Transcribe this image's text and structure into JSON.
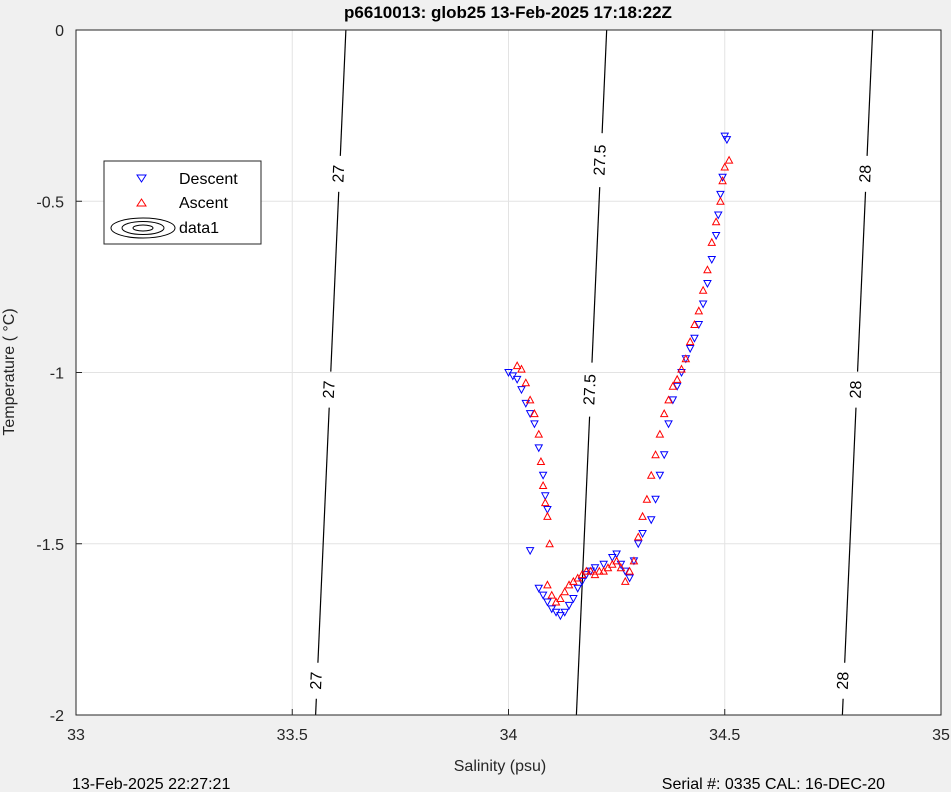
{
  "chart_data": {
    "type": "scatter",
    "title": "p6610013: glob25 13-Feb-2025 17:18:22Z",
    "xlabel": "Salinity (psu)",
    "ylabel": "Temperature (   °C)",
    "xlim": [
      33,
      35
    ],
    "ylim": [
      -2,
      0
    ],
    "x_ticks": [
      "33",
      "33.5",
      "34",
      "34.5",
      "35"
    ],
    "y_ticks": [
      "-2",
      "-1.5",
      "-1",
      "-0.5",
      "0"
    ],
    "grid": true,
    "legend_position": "top-left",
    "series": [
      {
        "name": "Descent",
        "marker": "triangle-down",
        "color": "#0000ff",
        "points": [
          [
            34.0,
            -1.0
          ],
          [
            34.01,
            -1.01
          ],
          [
            34.02,
            -1.02
          ],
          [
            34.03,
            -1.05
          ],
          [
            34.04,
            -1.09
          ],
          [
            34.05,
            -1.12
          ],
          [
            34.06,
            -1.15
          ],
          [
            34.07,
            -1.22
          ],
          [
            34.08,
            -1.3
          ],
          [
            34.085,
            -1.36
          ],
          [
            34.09,
            -1.4
          ],
          [
            34.05,
            -1.52
          ],
          [
            34.07,
            -1.63
          ],
          [
            34.08,
            -1.65
          ],
          [
            34.09,
            -1.67
          ],
          [
            34.1,
            -1.69
          ],
          [
            34.11,
            -1.7
          ],
          [
            34.12,
            -1.71
          ],
          [
            34.13,
            -1.7
          ],
          [
            34.14,
            -1.68
          ],
          [
            34.15,
            -1.66
          ],
          [
            34.16,
            -1.63
          ],
          [
            34.17,
            -1.61
          ],
          [
            34.18,
            -1.59
          ],
          [
            34.19,
            -1.58
          ],
          [
            34.2,
            -1.57
          ],
          [
            34.22,
            -1.56
          ],
          [
            34.24,
            -1.54
          ],
          [
            34.25,
            -1.53
          ],
          [
            34.26,
            -1.56
          ],
          [
            34.27,
            -1.58
          ],
          [
            34.28,
            -1.6
          ],
          [
            34.29,
            -1.55
          ],
          [
            34.3,
            -1.5
          ],
          [
            34.31,
            -1.47
          ],
          [
            34.33,
            -1.43
          ],
          [
            34.34,
            -1.37
          ],
          [
            34.35,
            -1.3
          ],
          [
            34.36,
            -1.24
          ],
          [
            34.37,
            -1.15
          ],
          [
            34.38,
            -1.08
          ],
          [
            34.39,
            -1.04
          ],
          [
            34.4,
            -1.0
          ],
          [
            34.41,
            -0.96
          ],
          [
            34.42,
            -0.93
          ],
          [
            34.43,
            -0.9
          ],
          [
            34.44,
            -0.86
          ],
          [
            34.45,
            -0.8
          ],
          [
            34.46,
            -0.74
          ],
          [
            34.47,
            -0.67
          ],
          [
            34.48,
            -0.6
          ],
          [
            34.485,
            -0.54
          ],
          [
            34.49,
            -0.48
          ],
          [
            34.495,
            -0.43
          ],
          [
            34.5,
            -0.31
          ],
          [
            34.505,
            -0.32
          ]
        ]
      },
      {
        "name": "Ascent",
        "marker": "triangle-up",
        "color": "#ff0000",
        "points": [
          [
            34.02,
            -0.98
          ],
          [
            34.03,
            -0.99
          ],
          [
            34.04,
            -1.03
          ],
          [
            34.05,
            -1.08
          ],
          [
            34.06,
            -1.12
          ],
          [
            34.07,
            -1.18
          ],
          [
            34.075,
            -1.26
          ],
          [
            34.08,
            -1.33
          ],
          [
            34.085,
            -1.38
          ],
          [
            34.09,
            -1.42
          ],
          [
            34.095,
            -1.5
          ],
          [
            34.09,
            -1.62
          ],
          [
            34.1,
            -1.65
          ],
          [
            34.11,
            -1.67
          ],
          [
            34.12,
            -1.66
          ],
          [
            34.13,
            -1.64
          ],
          [
            34.14,
            -1.62
          ],
          [
            34.15,
            -1.61
          ],
          [
            34.16,
            -1.6
          ],
          [
            34.17,
            -1.59
          ],
          [
            34.18,
            -1.58
          ],
          [
            34.19,
            -1.58
          ],
          [
            34.2,
            -1.59
          ],
          [
            34.21,
            -1.58
          ],
          [
            34.22,
            -1.58
          ],
          [
            34.23,
            -1.57
          ],
          [
            34.24,
            -1.56
          ],
          [
            34.25,
            -1.55
          ],
          [
            34.26,
            -1.57
          ],
          [
            34.27,
            -1.61
          ],
          [
            34.28,
            -1.58
          ],
          [
            34.29,
            -1.55
          ],
          [
            34.3,
            -1.48
          ],
          [
            34.31,
            -1.42
          ],
          [
            34.32,
            -1.37
          ],
          [
            34.33,
            -1.3
          ],
          [
            34.34,
            -1.24
          ],
          [
            34.35,
            -1.18
          ],
          [
            34.36,
            -1.12
          ],
          [
            34.37,
            -1.08
          ],
          [
            34.38,
            -1.04
          ],
          [
            34.39,
            -1.02
          ],
          [
            34.4,
            -0.99
          ],
          [
            34.41,
            -0.96
          ],
          [
            34.42,
            -0.91
          ],
          [
            34.43,
            -0.86
          ],
          [
            34.44,
            -0.82
          ],
          [
            34.45,
            -0.76
          ],
          [
            34.46,
            -0.7
          ],
          [
            34.47,
            -0.62
          ],
          [
            34.48,
            -0.56
          ],
          [
            34.49,
            -0.5
          ],
          [
            34.495,
            -0.44
          ],
          [
            34.5,
            -0.4
          ],
          [
            34.51,
            -0.38
          ]
        ]
      }
    ],
    "legend_entries": [
      "Descent",
      "Ascent",
      "data1"
    ],
    "contours": [
      {
        "label": "27",
        "points": [
          [
            33.554,
            -2
          ],
          [
            33.624,
            0
          ]
        ],
        "label_positions": [
          -1.9,
          -1.05,
          -0.42
        ]
      },
      {
        "label": "27.5",
        "points": [
          [
            34.157,
            -2
          ],
          [
            34.227,
            0
          ]
        ],
        "label_positions": [
          -1.05,
          -0.38
        ]
      },
      {
        "label": "28",
        "points": [
          [
            34.772,
            -2
          ],
          [
            34.842,
            0
          ]
        ],
        "label_positions": [
          -1.9,
          -1.05,
          -0.42
        ]
      }
    ]
  },
  "footer": {
    "left": "13-Feb-2025 22:27:21",
    "right": "Serial #: 0335  CAL: 16-DEC-20"
  }
}
